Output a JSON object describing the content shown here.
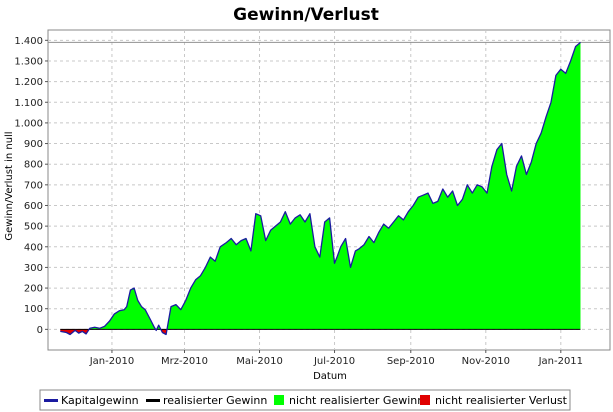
{
  "chart_data": {
    "type": "area",
    "title": "Gewinn/Verlust",
    "xlabel": "Datum",
    "ylabel": "Gewinn/Verlust in null",
    "xlim": [
      "2009-11-10",
      "2011-02-10"
    ],
    "ylim": [
      -100,
      1450
    ],
    "yticks": [
      0,
      100,
      200,
      300,
      400,
      500,
      600,
      700,
      800,
      900,
      1000,
      1100,
      1200,
      1300,
      1400
    ],
    "ytick_labels": [
      "0",
      "100",
      "200",
      "300",
      "400",
      "500",
      "600",
      "700",
      "800",
      "900",
      "1.000",
      "1.100",
      "1.200",
      "1.300",
      "1.400"
    ],
    "xticks": [
      "2010-01-01",
      "2010-03-01",
      "2010-05-01",
      "2010-07-01",
      "2010-09-01",
      "2010-11-01",
      "2011-01-01"
    ],
    "xtick_labels": [
      "Jan-2010",
      "Mrz-2010",
      "Mai-2010",
      "Jul-2010",
      "Sep-2010",
      "Nov-2010",
      "Jan-2011"
    ],
    "reference_line_y": 1390,
    "grid": true,
    "legend_position": "bottom",
    "colors": {
      "kapitalgewinn": "#1a1aa0",
      "realisierter_gewinn": "#000000",
      "nicht_realisierter_gewinn": "#00ff00",
      "nicht_realisierter_verlust": "#e00000"
    },
    "series": [
      {
        "name": "Kapitalgewinn",
        "x": [
          "2009-11-20",
          "2009-11-25",
          "2009-11-28",
          "2009-12-02",
          "2009-12-05",
          "2009-12-08",
          "2009-12-11",
          "2009-12-14",
          "2009-12-18",
          "2009-12-22",
          "2009-12-26",
          "2009-12-30",
          "2010-01-03",
          "2010-01-07",
          "2010-01-11",
          "2010-01-13",
          "2010-01-16",
          "2010-01-19",
          "2010-01-22",
          "2010-01-25",
          "2010-01-28",
          "2010-02-01",
          "2010-02-04",
          "2010-02-06",
          "2010-02-08",
          "2010-02-11",
          "2010-02-14",
          "2010-02-18",
          "2010-02-22",
          "2010-02-26",
          "2010-03-02",
          "2010-03-06",
          "2010-03-10",
          "2010-03-14",
          "2010-03-18",
          "2010-03-22",
          "2010-03-26",
          "2010-03-30",
          "2010-04-04",
          "2010-04-08",
          "2010-04-12",
          "2010-04-16",
          "2010-04-20",
          "2010-04-24",
          "2010-04-28",
          "2010-05-02",
          "2010-05-06",
          "2010-05-10",
          "2010-05-14",
          "2010-05-18",
          "2010-05-22",
          "2010-05-26",
          "2010-05-30",
          "2010-06-03",
          "2010-06-07",
          "2010-06-11",
          "2010-06-15",
          "2010-06-19",
          "2010-06-23",
          "2010-06-27",
          "2010-07-01",
          "2010-07-03",
          "2010-07-06",
          "2010-07-10",
          "2010-07-14",
          "2010-07-18",
          "2010-07-21",
          "2010-07-25",
          "2010-07-29",
          "2010-08-02",
          "2010-08-06",
          "2010-08-10",
          "2010-08-14",
          "2010-08-18",
          "2010-08-22",
          "2010-08-26",
          "2010-08-30",
          "2010-09-03",
          "2010-09-07",
          "2010-09-11",
          "2010-09-15",
          "2010-09-19",
          "2010-09-23",
          "2010-09-27",
          "2010-10-01",
          "2010-10-05",
          "2010-10-09",
          "2010-10-13",
          "2010-10-17",
          "2010-10-21",
          "2010-10-25",
          "2010-10-29",
          "2010-11-02",
          "2010-11-06",
          "2010-11-10",
          "2010-11-14",
          "2010-11-18",
          "2010-11-22",
          "2010-11-26",
          "2010-11-30",
          "2010-12-04",
          "2010-12-08",
          "2010-12-12",
          "2010-12-16",
          "2010-12-20",
          "2010-12-24",
          "2010-12-28",
          "2011-01-01",
          "2011-01-05",
          "2011-01-09",
          "2011-01-13",
          "2011-01-17"
        ],
        "y": [
          -10,
          -15,
          -25,
          -5,
          -18,
          -10,
          -22,
          5,
          10,
          5,
          15,
          40,
          75,
          90,
          95,
          110,
          190,
          200,
          140,
          110,
          95,
          50,
          15,
          -5,
          20,
          -15,
          -25,
          110,
          120,
          95,
          140,
          200,
          240,
          260,
          300,
          350,
          330,
          400,
          420,
          440,
          410,
          430,
          440,
          380,
          560,
          550,
          430,
          480,
          500,
          520,
          570,
          510,
          540,
          555,
          520,
          560,
          400,
          350,
          520,
          540,
          320,
          350,
          400,
          440,
          300,
          380,
          390,
          410,
          450,
          420,
          470,
          510,
          490,
          520,
          550,
          530,
          570,
          600,
          640,
          650,
          660,
          610,
          620,
          680,
          640,
          670,
          600,
          630,
          700,
          660,
          700,
          690,
          660,
          790,
          870,
          900,
          750,
          670,
          790,
          840,
          750,
          810,
          900,
          950,
          1030,
          1100,
          1230,
          1260,
          1240,
          1300,
          1370,
          1390
        ]
      },
      {
        "name": "realisierter Gewinn",
        "x": [
          "2009-11-20",
          "2011-01-17"
        ],
        "y": [
          0,
          0
        ]
      }
    ]
  },
  "legend": [
    {
      "label": "Kapitalgewinn",
      "swatch": "line",
      "color": "#1a1aa0"
    },
    {
      "label": "realisierter Gewinn",
      "swatch": "line",
      "color": "#000000"
    },
    {
      "label": "nicht realisierter Gewinn",
      "swatch": "box",
      "color": "#00ff00"
    },
    {
      "label": "nicht realisierter Verlust",
      "swatch": "box",
      "color": "#e00000"
    }
  ]
}
